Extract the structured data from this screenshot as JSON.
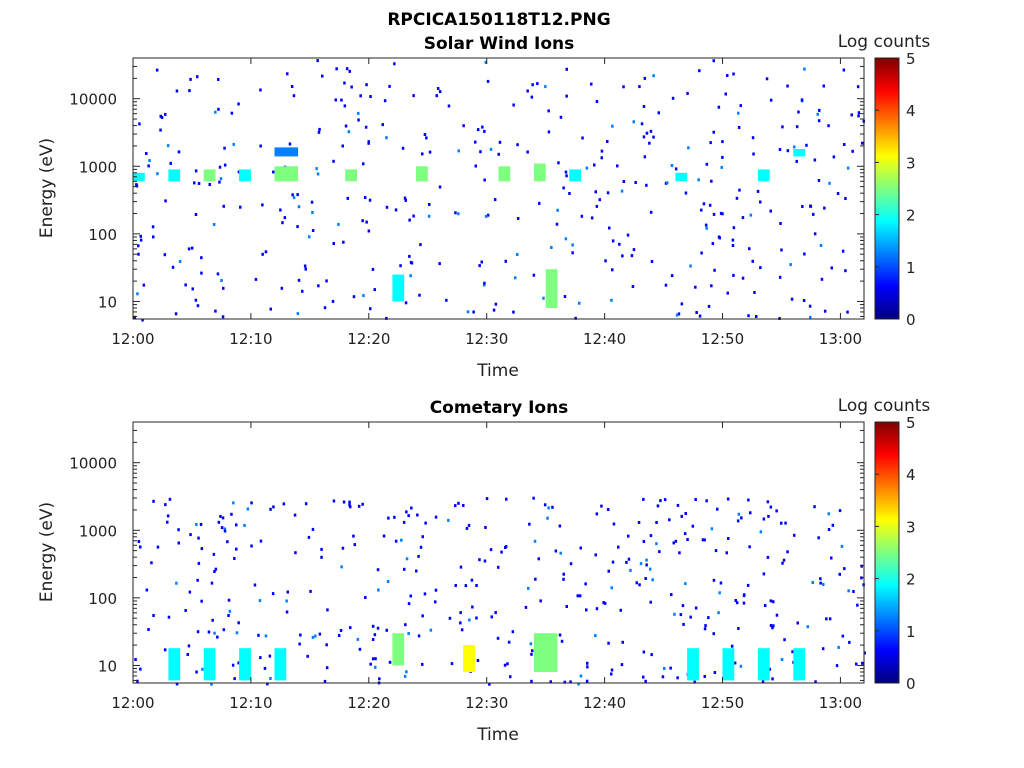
{
  "figure": {
    "title": "RPCICA150118T12.PNG"
  },
  "colormap": [
    "#00007f",
    "#0000ff",
    "#007fff",
    "#00ffff",
    "#7fff7f",
    "#ffff00",
    "#ff7f00",
    "#ff0000",
    "#7f0000"
  ],
  "chart_data": [
    {
      "type": "heatmap",
      "title": "Solar Wind Ions",
      "xlabel": "Time",
      "ylabel": "Energy (eV)",
      "xlim": [
        "12:00",
        "13:02"
      ],
      "x_ticks": [
        "12:00",
        "12:10",
        "12:20",
        "12:30",
        "12:40",
        "12:50",
        "13:00"
      ],
      "y_scale": "log",
      "ylim": [
        5.5,
        40000
      ],
      "y_ticks": [
        10,
        100,
        1000,
        10000
      ],
      "y_tick_labels": [
        "10",
        "100",
        "1000",
        "10000"
      ],
      "colorbar": {
        "label": "Log counts",
        "range": [
          0,
          5
        ],
        "ticks": [
          "0",
          "1",
          "2",
          "3",
          "4",
          "5"
        ]
      },
      "patches": [
        {
          "x_range": [
            "12:00",
            "12:01"
          ],
          "e_range": [
            600,
            800
          ],
          "log_counts": 1.8
        },
        {
          "x_range": [
            "12:03",
            "12:04"
          ],
          "e_range": [
            600,
            900
          ],
          "log_counts": 2.0
        },
        {
          "x_range": [
            "12:06",
            "12:07"
          ],
          "e_range": [
            600,
            900
          ],
          "log_counts": 2.3
        },
        {
          "x_range": [
            "12:09",
            "12:10"
          ],
          "e_range": [
            600,
            900
          ],
          "log_counts": 1.6
        },
        {
          "x_range": [
            "12:12",
            "12:14"
          ],
          "e_range": [
            600,
            1000
          ],
          "log_counts": 2.6
        },
        {
          "x_range": [
            "12:12",
            "12:14"
          ],
          "e_range": [
            1400,
            1900
          ],
          "log_counts": 1.5
        },
        {
          "x_range": [
            "12:18",
            "12:19"
          ],
          "e_range": [
            600,
            900
          ],
          "log_counts": 2.2
        },
        {
          "x_range": [
            "12:24",
            "12:25"
          ],
          "e_range": [
            600,
            1000
          ],
          "log_counts": 2.4
        },
        {
          "x_range": [
            "12:31",
            "12:32"
          ],
          "e_range": [
            600,
            1000
          ],
          "log_counts": 2.2
        },
        {
          "x_range": [
            "12:34",
            "12:35"
          ],
          "e_range": [
            600,
            1100
          ],
          "log_counts": 2.8
        },
        {
          "x_range": [
            "12:35",
            "12:36"
          ],
          "e_range": [
            8,
            30
          ],
          "log_counts": 2.6
        },
        {
          "x_range": [
            "12:22",
            "12:23"
          ],
          "e_range": [
            10,
            25
          ],
          "log_counts": 2.0
        },
        {
          "x_range": [
            "12:37",
            "12:38"
          ],
          "e_range": [
            600,
            900
          ],
          "log_counts": 1.8
        },
        {
          "x_range": [
            "12:46",
            "12:47"
          ],
          "e_range": [
            600,
            800
          ],
          "log_counts": 1.7
        },
        {
          "x_range": [
            "12:53",
            "12:54"
          ],
          "e_range": [
            600,
            900
          ],
          "log_counts": 1.9
        },
        {
          "x_range": [
            "12:56",
            "12:57"
          ],
          "e_range": [
            1400,
            1800
          ],
          "log_counts": 2.0
        }
      ]
    },
    {
      "type": "heatmap",
      "title": "Cometary Ions",
      "xlabel": "Time",
      "ylabel": "Energy (eV)",
      "xlim": [
        "12:00",
        "13:02"
      ],
      "x_ticks": [
        "12:00",
        "12:10",
        "12:20",
        "12:30",
        "12:40",
        "12:50",
        "13:00"
      ],
      "y_scale": "log",
      "ylim": [
        5.5,
        40000
      ],
      "y_ticks": [
        10,
        100,
        1000,
        10000
      ],
      "y_tick_labels": [
        "10",
        "100",
        "1000",
        "10000"
      ],
      "colorbar": {
        "label": "Log counts",
        "range": [
          0,
          5
        ],
        "ticks": [
          "0",
          "1",
          "2",
          "3",
          "4",
          "5"
        ]
      },
      "patches": [
        {
          "x_range": [
            "12:03",
            "12:04"
          ],
          "e_range": [
            6,
            18
          ],
          "log_counts": 2.0
        },
        {
          "x_range": [
            "12:06",
            "12:07"
          ],
          "e_range": [
            6,
            18
          ],
          "log_counts": 2.0
        },
        {
          "x_range": [
            "12:09",
            "12:10"
          ],
          "e_range": [
            6,
            18
          ],
          "log_counts": 2.0
        },
        {
          "x_range": [
            "12:12",
            "12:13"
          ],
          "e_range": [
            6,
            18
          ],
          "log_counts": 2.0
        },
        {
          "x_range": [
            "12:22",
            "12:23"
          ],
          "e_range": [
            10,
            30
          ],
          "log_counts": 2.8
        },
        {
          "x_range": [
            "12:28",
            "12:29"
          ],
          "e_range": [
            8,
            20
          ],
          "log_counts": 3.0
        },
        {
          "x_range": [
            "12:34",
            "12:36"
          ],
          "e_range": [
            8,
            30
          ],
          "log_counts": 2.6
        },
        {
          "x_range": [
            "12:47",
            "12:48"
          ],
          "e_range": [
            6,
            18
          ],
          "log_counts": 2.0
        },
        {
          "x_range": [
            "12:50",
            "12:51"
          ],
          "e_range": [
            6,
            18
          ],
          "log_counts": 2.0
        },
        {
          "x_range": [
            "12:53",
            "12:54"
          ],
          "e_range": [
            6,
            18
          ],
          "log_counts": 2.0
        },
        {
          "x_range": [
            "12:56",
            "12:57"
          ],
          "e_range": [
            6,
            18
          ],
          "log_counts": 2.0
        }
      ]
    }
  ]
}
